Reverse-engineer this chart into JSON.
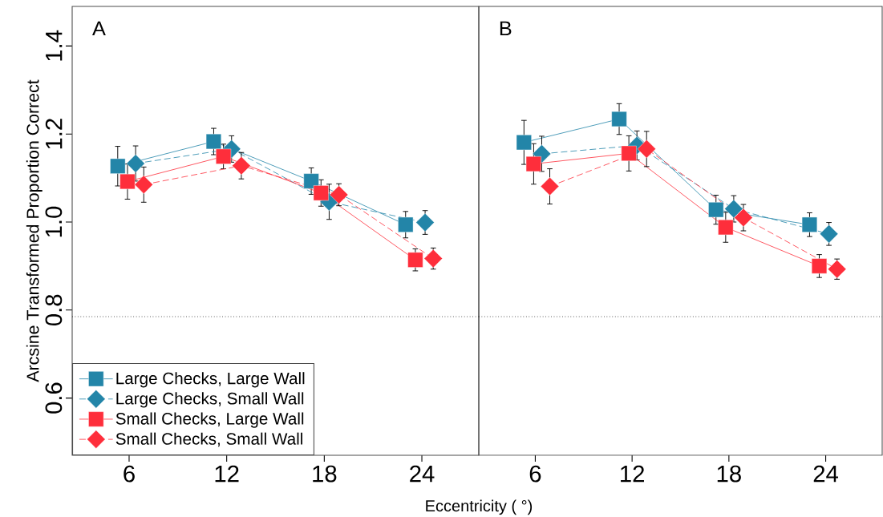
{
  "chart_data": [
    {
      "type": "line",
      "title": "A",
      "ylabel": "Arcsine Transformed Proportion Correct",
      "xlabel": "Eccentricity ( °)",
      "xlim": [
        2.5,
        27.5
      ],
      "ylim": [
        0.47,
        1.49
      ],
      "xticks": [
        6,
        12,
        18,
        24
      ],
      "yticks": [
        0.6,
        0.8,
        {
          "value": 1.0,
          "label": "1.0"
        },
        1.2,
        1.4
      ],
      "grid": false,
      "legend": "bottom left",
      "ref_lines": [
        {
          "axis": "y",
          "value": 0.785,
          "line_style": "dotted",
          "color": "#000000"
        }
      ],
      "series": [
        {
          "name": "Large Checks, Large Wall",
          "color": "#2385a8",
          "marker": "square",
          "line_style": "solid",
          "x": [
            5.3,
            11.2,
            17.2,
            23.0
          ],
          "values": [
            1.127,
            1.183,
            1.093,
            0.994
          ],
          "errors": [
            0.045,
            0.03,
            0.03,
            0.03
          ]
        },
        {
          "name": "Large Checks, Small Wall",
          "color": "#2385a8",
          "marker": "diamond",
          "line_style": "dashed",
          "x": [
            6.4,
            12.3,
            18.3,
            24.2
          ],
          "values": [
            1.133,
            1.166,
            1.046,
            0.999
          ],
          "errors": [
            0.04,
            0.03,
            0.04,
            0.027
          ]
        },
        {
          "name": "Small Checks, Large Wall",
          "color": "#fe2e3b",
          "marker": "square",
          "line_style": "solid",
          "x": [
            5.9,
            11.8,
            17.8,
            23.6
          ],
          "values": [
            1.092,
            1.149,
            1.066,
            0.914
          ],
          "errors": [
            0.04,
            0.028,
            0.03,
            0.025
          ]
        },
        {
          "name": "Small Checks, Small Wall",
          "color": "#fe2e3b",
          "marker": "diamond",
          "line_style": "dashed",
          "x": [
            6.9,
            12.9,
            18.9,
            24.7
          ],
          "values": [
            1.085,
            1.128,
            1.062,
            0.917
          ],
          "errors": [
            0.04,
            0.03,
            0.025,
            0.024
          ]
        }
      ]
    },
    {
      "type": "line",
      "title": "B",
      "xlim": [
        2.5,
        27.5
      ],
      "ylim": [
        0.47,
        1.49
      ],
      "xticks": [
        6,
        12,
        18,
        24
      ],
      "tick_labels": "x",
      "grid": false,
      "ref_lines": [
        {
          "axis": "y",
          "value": 0.785,
          "line_style": "dotted",
          "color": "#000000"
        }
      ],
      "series": [
        {
          "color": "#2385a8",
          "marker": "square",
          "line_style": "solid",
          "x": [
            5.3,
            11.2,
            17.2,
            23.0
          ],
          "values": [
            1.181,
            1.234,
            1.028,
            0.994
          ],
          "errors": [
            0.05,
            0.035,
            0.033,
            0.027
          ]
        },
        {
          "color": "#2385a8",
          "marker": "diamond",
          "line_style": "dashed",
          "x": [
            6.4,
            12.3,
            18.3,
            24.2
          ],
          "values": [
            1.155,
            1.174,
            1.03,
            0.973
          ],
          "errors": [
            0.04,
            0.033,
            0.03,
            0.026
          ]
        },
        {
          "color": "#fe2e3b",
          "marker": "square",
          "line_style": "solid",
          "x": [
            5.9,
            11.8,
            17.8,
            23.6
          ],
          "values": [
            1.132,
            1.156,
            0.988,
            0.9
          ],
          "errors": [
            0.046,
            0.04,
            0.034,
            0.026
          ]
        },
        {
          "color": "#fe2e3b",
          "marker": "diamond",
          "line_style": "dashed",
          "x": [
            6.9,
            12.9,
            18.9,
            24.7
          ],
          "values": [
            1.081,
            1.166,
            1.01,
            0.893
          ],
          "errors": [
            0.04,
            0.04,
            0.03,
            0.023
          ]
        }
      ]
    }
  ]
}
